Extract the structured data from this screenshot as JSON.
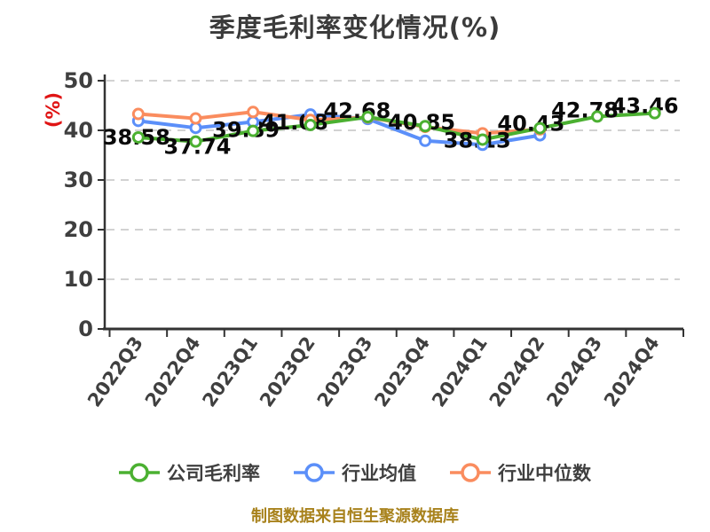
{
  "title": "季度毛利率变化情况(%)",
  "y_axis_label": "(%)",
  "caption": "制图数据来自恒生聚源数据库",
  "colors": {
    "company": "#4bb031",
    "industry_avg": "#5b8ff9",
    "industry_median": "#fa8c5e",
    "grid": "#d2d2d2",
    "axis": "#333333",
    "tick_text": "#3f3f3f",
    "data_label_text": "#0a0a0a",
    "title_text": "#3b3b3b",
    "y_unit_text": "#e01414",
    "caption_text": "#a8821c"
  },
  "chart_data": {
    "type": "line",
    "title": "季度毛利率变化情况(%)",
    "categories": [
      "2022Q3",
      "2022Q4",
      "2023Q1",
      "2023Q2",
      "2023Q3",
      "2023Q4",
      "2024Q1",
      "2024Q2",
      "2024Q3",
      "2024Q4"
    ],
    "series": [
      {
        "name": "公司毛利率",
        "color_key": "company",
        "values": [
          38.58,
          37.74,
          39.89,
          41.08,
          42.68,
          40.85,
          38.13,
          40.43,
          42.78,
          43.46
        ],
        "point_labels": [
          "38.58",
          "37.74",
          "39.89",
          "41.08",
          "42.68",
          "40.85",
          "38.13",
          "40.43",
          "42.78",
          "43.46"
        ]
      },
      {
        "name": "行业均值",
        "color_key": "industry_avg",
        "values": [
          41.9,
          40.5,
          41.7,
          43.2,
          42.3,
          37.9,
          37.1,
          39.0,
          null,
          null
        ],
        "point_labels": []
      },
      {
        "name": "行业中位数",
        "color_key": "industry_median",
        "values": [
          43.3,
          42.4,
          43.7,
          42.1,
          42.6,
          40.7,
          39.4,
          40.2,
          null,
          null
        ],
        "point_labels": []
      }
    ],
    "ylim": [
      0,
      50
    ],
    "yticks": [
      0,
      10,
      20,
      30,
      40,
      50
    ],
    "grid": "horizontal dashed",
    "legend_position": "bottom",
    "ylabel": "(%)"
  }
}
